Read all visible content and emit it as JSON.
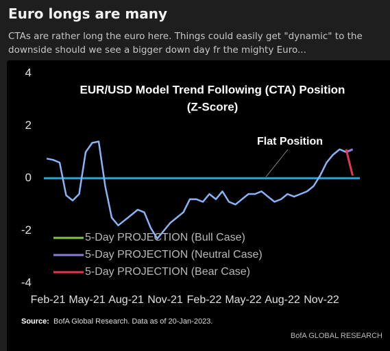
{
  "header": {
    "title": "Euro longs are many",
    "subtitle": "CTAs are rather long the euro here. Things could easily get \"dynamic\" to the downside should we see a bigger down day fr the mighty Euro..."
  },
  "chart_data": {
    "type": "line",
    "title": [
      "EUR/USD Model Trend Following (CTA) Position",
      "(Z-Score)"
    ],
    "categories": [
      "Feb-21",
      null,
      null,
      null,
      null,
      null,
      "May-21",
      null,
      null,
      null,
      null,
      null,
      "Aug-21",
      null,
      null,
      null,
      null,
      null,
      "Nov-21",
      null,
      null,
      null,
      null,
      null,
      "Feb-22",
      null,
      null,
      null,
      null,
      null,
      "May-22",
      null,
      null,
      null,
      null,
      null,
      "Aug-22",
      null,
      null,
      null,
      null,
      null,
      "Nov-22",
      null,
      null,
      null,
      null,
      null
    ],
    "values": [
      0.75,
      0.7,
      0.6,
      -0.65,
      -0.85,
      -0.6,
      1.0,
      1.35,
      1.4,
      -0.3,
      -1.5,
      -1.8,
      -1.6,
      -1.4,
      -1.2,
      -1.3,
      -1.9,
      -2.3,
      -2.0,
      -1.7,
      -1.5,
      -1.3,
      -0.8,
      -0.8,
      -0.9,
      -0.6,
      -0.8,
      -0.5,
      -0.9,
      -1.0,
      -0.8,
      -0.6,
      -0.6,
      -0.5,
      -0.7,
      -0.9,
      -0.8,
      -0.6,
      -0.7,
      -0.6,
      -0.5,
      -0.3,
      0.1,
      0.6,
      0.9,
      1.1,
      1.0,
      1.1
    ],
    "color": "#8ab4f8",
    "series": [
      {
        "name": "5-Day PROJECTION (Bull Case)",
        "color": "#8bc34a",
        "values": [
          null,
          null,
          null,
          null,
          null,
          null,
          null,
          null,
          null,
          null,
          null,
          null,
          null,
          null,
          null,
          null,
          null,
          null,
          null,
          null,
          null,
          null,
          null,
          null,
          null,
          null,
          null,
          null,
          null,
          null,
          null,
          null,
          null,
          null,
          null,
          null,
          null,
          null,
          null,
          null,
          null,
          null,
          null,
          null,
          null,
          null,
          1.0,
          1.1
        ]
      },
      {
        "name": "5-Day PROJECTION (Neutral Case)",
        "color": "#8a7fd8",
        "values": [
          null,
          null,
          null,
          null,
          null,
          null,
          null,
          null,
          null,
          null,
          null,
          null,
          null,
          null,
          null,
          null,
          null,
          null,
          null,
          null,
          null,
          null,
          null,
          null,
          null,
          null,
          null,
          null,
          null,
          null,
          null,
          null,
          null,
          null,
          null,
          null,
          null,
          null,
          null,
          null,
          null,
          null,
          null,
          null,
          null,
          null,
          1.0,
          1.1
        ]
      },
      {
        "name": "5-Day PROJECTION (Bear Case)",
        "color": "#e8354f",
        "values": [
          null,
          null,
          null,
          null,
          null,
          null,
          null,
          null,
          null,
          null,
          null,
          null,
          null,
          null,
          null,
          null,
          null,
          null,
          null,
          null,
          null,
          null,
          null,
          null,
          null,
          null,
          null,
          null,
          null,
          null,
          null,
          null,
          null,
          null,
          null,
          null,
          null,
          null,
          null,
          null,
          null,
          null,
          null,
          null,
          null,
          null,
          1.1,
          0.1
        ]
      }
    ],
    "annotation": {
      "label": "Flat Position",
      "value": 0,
      "color": "#2ba8d8"
    },
    "ylim": [
      -4,
      4
    ],
    "yticks": [
      -4,
      -2,
      0,
      2,
      4
    ],
    "source": {
      "label": "Source:",
      "text": "BofA Global Research.  Data as of 20-Jan-2023."
    },
    "brand": "BofA GLOBAL RESEARCH"
  }
}
